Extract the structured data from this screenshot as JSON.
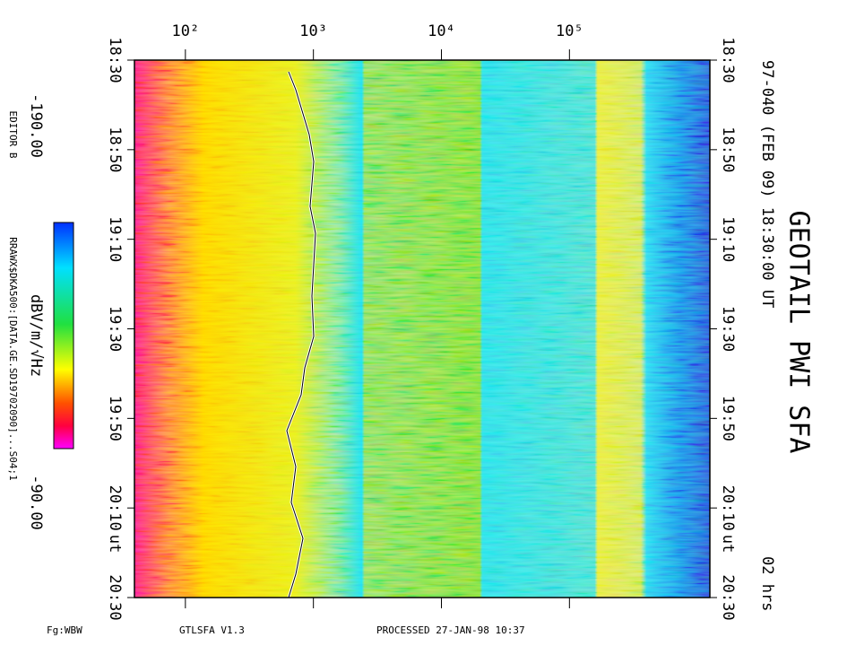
{
  "chart_data": {
    "type": "spectrogram",
    "title": "GEOTAIL PWI SFA",
    "subtitle": "97-040 (FEB 09) 18:30:00 UT",
    "duration": "02 hrs",
    "xscale": "log",
    "xlim": [
      40,
      1250000
    ],
    "xticks": [
      {
        "value": 100,
        "label": "10²"
      },
      {
        "value": 1000,
        "label": "10³"
      },
      {
        "value": 10000,
        "label": "10⁴"
      },
      {
        "value": 100000,
        "label": "10⁵"
      }
    ],
    "time_ticks": [
      "18:30",
      "18:50",
      "19:10",
      "19:30",
      "19:50",
      "20:10",
      "20:30"
    ],
    "time_unit": "ut",
    "colorbar": {
      "label": "dBV/m/√Hz",
      "range": [
        {
          "value": -190,
          "label": "-190.00"
        },
        {
          "value": -90,
          "label": "-90.00"
        }
      ]
    },
    "editor": "EDITOR B",
    "file": "RRAWX$DKA500:[DATA.GE.SD19702090]...S04;1",
    "fg": "Fg:WBW",
    "version": "GTLSFA   V1.3",
    "processed": "PROCESSED 27-JAN-98  10:37"
  }
}
